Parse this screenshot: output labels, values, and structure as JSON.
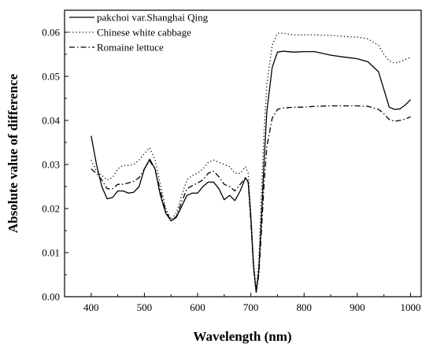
{
  "chart_data": {
    "type": "line",
    "title": "",
    "xlabel": "Wavelength (nm)",
    "ylabel": "Absolute  value of difference",
    "xlim": [
      350,
      1020
    ],
    "ylim": [
      0.0,
      0.065
    ],
    "x_ticks": [
      400,
      500,
      600,
      700,
      800,
      900,
      1000
    ],
    "y_ticks": [
      0.0,
      0.01,
      0.02,
      0.03,
      0.04,
      0.05,
      0.06
    ],
    "x_tick_labels": [
      "400",
      "500",
      "600",
      "700",
      "800",
      "900",
      "1000"
    ],
    "y_tick_labels": [
      "0.00",
      "0.01",
      "0.02",
      "0.03",
      "0.04",
      "0.05",
      "0.06"
    ],
    "grid": false,
    "legend_position": "top-left",
    "series": [
      {
        "name": "pakchoi var.Shanghai Qing",
        "line_style": "solid",
        "color": "#000000",
        "points": [
          [
            400,
            0.0365
          ],
          [
            410,
            0.03
          ],
          [
            420,
            0.025
          ],
          [
            430,
            0.0222
          ],
          [
            440,
            0.0225
          ],
          [
            450,
            0.024
          ],
          [
            460,
            0.024
          ],
          [
            470,
            0.0235
          ],
          [
            480,
            0.0237
          ],
          [
            490,
            0.025
          ],
          [
            500,
            0.029
          ],
          [
            510,
            0.0312
          ],
          [
            520,
            0.029
          ],
          [
            530,
            0.023
          ],
          [
            540,
            0.019
          ],
          [
            550,
            0.0172
          ],
          [
            560,
            0.018
          ],
          [
            570,
            0.0205
          ],
          [
            580,
            0.023
          ],
          [
            590,
            0.0235
          ],
          [
            600,
            0.0235
          ],
          [
            610,
            0.025
          ],
          [
            620,
            0.026
          ],
          [
            630,
            0.026
          ],
          [
            640,
            0.0245
          ],
          [
            650,
            0.022
          ],
          [
            660,
            0.023
          ],
          [
            670,
            0.0218
          ],
          [
            680,
            0.024
          ],
          [
            690,
            0.027
          ],
          [
            695,
            0.026
          ],
          [
            700,
            0.018
          ],
          [
            705,
            0.007
          ],
          [
            710,
            0.001
          ],
          [
            715,
            0.006
          ],
          [
            720,
            0.018
          ],
          [
            725,
            0.031
          ],
          [
            730,
            0.042
          ],
          [
            740,
            0.052
          ],
          [
            750,
            0.0555
          ],
          [
            760,
            0.0557
          ],
          [
            780,
            0.0555
          ],
          [
            800,
            0.0556
          ],
          [
            820,
            0.0556
          ],
          [
            850,
            0.0548
          ],
          [
            880,
            0.0543
          ],
          [
            900,
            0.054
          ],
          [
            920,
            0.0533
          ],
          [
            940,
            0.051
          ],
          [
            950,
            0.047
          ],
          [
            960,
            0.043
          ],
          [
            970,
            0.0425
          ],
          [
            980,
            0.0426
          ],
          [
            990,
            0.0435
          ],
          [
            1000,
            0.0447
          ]
        ]
      },
      {
        "name": "Chinese white cabbage",
        "line_style": "dotted",
        "color": "#000000",
        "points": [
          [
            400,
            0.031
          ],
          [
            410,
            0.0285
          ],
          [
            420,
            0.0275
          ],
          [
            430,
            0.0265
          ],
          [
            440,
            0.027
          ],
          [
            450,
            0.029
          ],
          [
            460,
            0.0298
          ],
          [
            470,
            0.0298
          ],
          [
            480,
            0.03
          ],
          [
            490,
            0.031
          ],
          [
            500,
            0.0325
          ],
          [
            510,
            0.0338
          ],
          [
            520,
            0.031
          ],
          [
            530,
            0.0255
          ],
          [
            540,
            0.02
          ],
          [
            550,
            0.0175
          ],
          [
            560,
            0.019
          ],
          [
            570,
            0.023
          ],
          [
            580,
            0.0265
          ],
          [
            590,
            0.0275
          ],
          [
            600,
            0.028
          ],
          [
            610,
            0.029
          ],
          [
            620,
            0.0305
          ],
          [
            630,
            0.031
          ],
          [
            640,
            0.0305
          ],
          [
            650,
            0.03
          ],
          [
            660,
            0.0295
          ],
          [
            670,
            0.028
          ],
          [
            680,
            0.028
          ],
          [
            690,
            0.0295
          ],
          [
            695,
            0.028
          ],
          [
            700,
            0.019
          ],
          [
            705,
            0.008
          ],
          [
            710,
            0.0015
          ],
          [
            715,
            0.008
          ],
          [
            720,
            0.024
          ],
          [
            725,
            0.038
          ],
          [
            730,
            0.048
          ],
          [
            740,
            0.057
          ],
          [
            750,
            0.0598
          ],
          [
            760,
            0.0598
          ],
          [
            780,
            0.0594
          ],
          [
            800,
            0.0594
          ],
          [
            820,
            0.0594
          ],
          [
            850,
            0.0593
          ],
          [
            880,
            0.059
          ],
          [
            900,
            0.0589
          ],
          [
            920,
            0.0585
          ],
          [
            940,
            0.057
          ],
          [
            950,
            0.055
          ],
          [
            960,
            0.0535
          ],
          [
            970,
            0.053
          ],
          [
            980,
            0.0533
          ],
          [
            990,
            0.0538
          ],
          [
            1000,
            0.0543
          ]
        ]
      },
      {
        "name": "Romaine lettuce",
        "line_style": "dash-dot",
        "color": "#000000",
        "points": [
          [
            400,
            0.029
          ],
          [
            410,
            0.028
          ],
          [
            420,
            0.0265
          ],
          [
            430,
            0.0245
          ],
          [
            440,
            0.0245
          ],
          [
            450,
            0.0255
          ],
          [
            460,
            0.0255
          ],
          [
            470,
            0.0258
          ],
          [
            480,
            0.0262
          ],
          [
            490,
            0.027
          ],
          [
            500,
            0.029
          ],
          [
            510,
            0.0308
          ],
          [
            520,
            0.029
          ],
          [
            530,
            0.024
          ],
          [
            540,
            0.0195
          ],
          [
            550,
            0.0172
          ],
          [
            560,
            0.0182
          ],
          [
            570,
            0.0215
          ],
          [
            580,
            0.0245
          ],
          [
            590,
            0.0252
          ],
          [
            600,
            0.0258
          ],
          [
            610,
            0.0265
          ],
          [
            620,
            0.028
          ],
          [
            630,
            0.0285
          ],
          [
            640,
            0.0272
          ],
          [
            650,
            0.0255
          ],
          [
            660,
            0.025
          ],
          [
            670,
            0.024
          ],
          [
            680,
            0.0255
          ],
          [
            690,
            0.027
          ],
          [
            695,
            0.026
          ],
          [
            700,
            0.017
          ],
          [
            705,
            0.0065
          ],
          [
            710,
            0.001
          ],
          [
            715,
            0.005
          ],
          [
            720,
            0.015
          ],
          [
            725,
            0.026
          ],
          [
            730,
            0.034
          ],
          [
            740,
            0.0405
          ],
          [
            750,
            0.0425
          ],
          [
            760,
            0.0428
          ],
          [
            780,
            0.043
          ],
          [
            800,
            0.043
          ],
          [
            820,
            0.0432
          ],
          [
            850,
            0.0433
          ],
          [
            880,
            0.0433
          ],
          [
            900,
            0.0433
          ],
          [
            920,
            0.0432
          ],
          [
            940,
            0.0425
          ],
          [
            950,
            0.0415
          ],
          [
            960,
            0.0402
          ],
          [
            970,
            0.0398
          ],
          [
            980,
            0.04
          ],
          [
            990,
            0.0403
          ],
          [
            1000,
            0.0408
          ]
        ]
      }
    ]
  }
}
